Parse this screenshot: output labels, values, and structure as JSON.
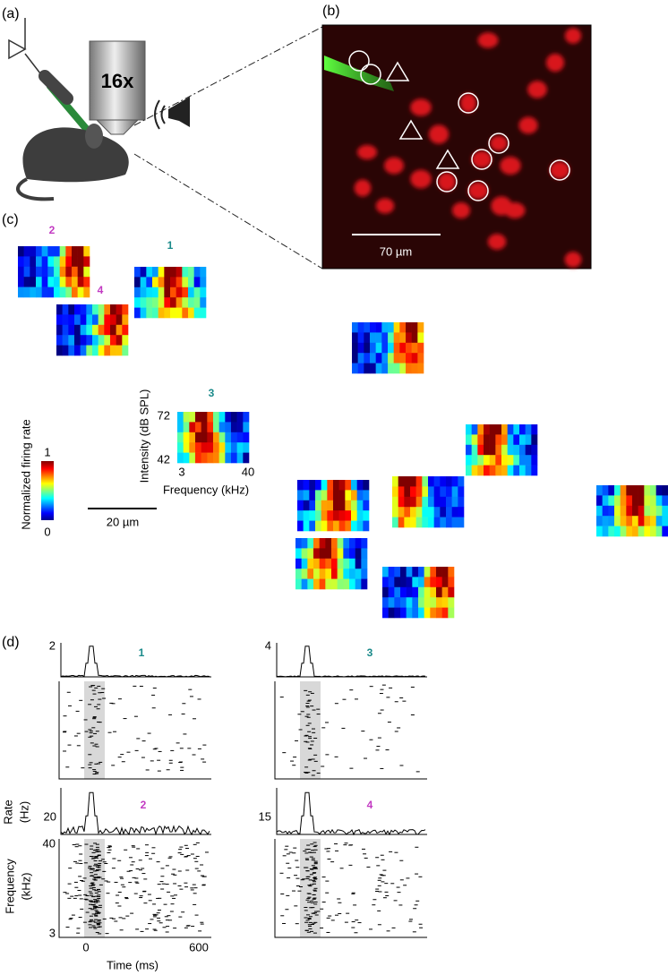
{
  "panel_a": {
    "label": "(a)",
    "objective": "16x"
  },
  "panel_b": {
    "label": "(b)",
    "scale_bar": "70 µm"
  },
  "panel_c": {
    "label": "(c)",
    "cells": [
      {
        "id": "2"
      },
      {
        "id": "1"
      },
      {
        "id": "4"
      },
      {
        "id": "3"
      }
    ],
    "example_axes": {
      "y_label": "Intensity (dB  SPL)",
      "y_ticks": [
        "72",
        "42"
      ],
      "x_label": "Frequency (kHz)",
      "x_ticks": [
        "3",
        "40"
      ]
    },
    "colorbar": {
      "label": "Normalized firing rate",
      "max": "1",
      "min": "0"
    },
    "scale_bar": "20 µm"
  },
  "panel_d": {
    "label": "(d)",
    "units": [
      {
        "id": "1",
        "rate_max": "2"
      },
      {
        "id": "3",
        "rate_max": "4"
      },
      {
        "id": "2",
        "rate_max": "20"
      },
      {
        "id": "4",
        "rate_max": "15"
      }
    ],
    "rate_label": [
      "Rate",
      "(Hz)"
    ],
    "frequency_label": [
      "Frequency",
      "(kHz)"
    ],
    "frequency_ticks": [
      "40",
      "3"
    ],
    "time_ticks": [
      "0",
      "600"
    ],
    "time_label": "Time (ms)"
  }
}
